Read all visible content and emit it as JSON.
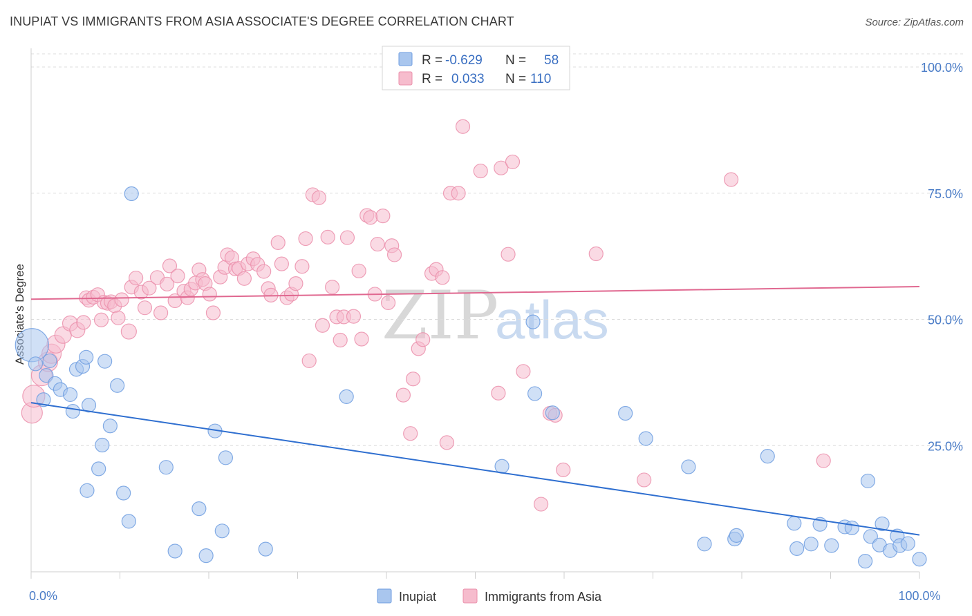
{
  "title": "INUPIAT VS IMMIGRANTS FROM ASIA ASSOCIATE'S DEGREE CORRELATION CHART",
  "source": "Source: ZipAtlas.com",
  "watermark": {
    "part1": "ZIP",
    "part2": "atlas"
  },
  "colors": {
    "inupiat_fill": "#a9c6ee",
    "inupiat_stroke": "#6f9ee0",
    "inupiat_line": "#2f6fd0",
    "asia_fill": "#f6bccd",
    "asia_stroke": "#eb8fab",
    "asia_line": "#e06890",
    "tick_label": "#4a7cc7"
  },
  "legend": {
    "rows": [
      {
        "r_label": "R =",
        "r_value": "-0.629",
        "n_label": "N =",
        "n_value": "58"
      },
      {
        "r_label": "R =",
        "r_value": "0.033",
        "n_label": "N =",
        "n_value": "110"
      }
    ]
  },
  "chart_data": {
    "type": "scatter",
    "title": "INUPIAT VS IMMIGRANTS FROM ASIA ASSOCIATE'S DEGREE CORRELATION CHART",
    "xlabel": "",
    "ylabel": "Associate's Degree",
    "xlim": [
      0,
      100
    ],
    "ylim": [
      0,
      100
    ],
    "x_tick_labels": [
      "0.0%",
      "100.0%"
    ],
    "y_ticks": [
      25,
      50,
      75,
      100
    ],
    "y_tick_labels": [
      "25.0%",
      "50.0%",
      "75.0%",
      "100.0%"
    ],
    "grid": "horizontal dashed",
    "legend_position": "top-center",
    "series": [
      {
        "name": "Inupiat",
        "trend": {
          "x": [
            0,
            100
          ],
          "y": [
            33.5,
            7.3
          ]
        },
        "points": [
          [
            0.1,
            44.9,
            24
          ],
          [
            0.5,
            41.2,
            10
          ],
          [
            1.4,
            34.1,
            10
          ],
          [
            1.7,
            38.9,
            10
          ],
          [
            2.1,
            41.8,
            10
          ],
          [
            2.7,
            37.3,
            10
          ],
          [
            3.3,
            36.1,
            10
          ],
          [
            4.4,
            35.1,
            10
          ],
          [
            4.7,
            31.8,
            10
          ],
          [
            5.1,
            40.1,
            10
          ],
          [
            5.8,
            40.7,
            10
          ],
          [
            6.2,
            42.5,
            10
          ],
          [
            6.5,
            33.0,
            10
          ],
          [
            7.6,
            20.4,
            10
          ],
          [
            8.0,
            25.1,
            10
          ],
          [
            8.3,
            41.7,
            10
          ],
          [
            8.9,
            28.9,
            10
          ],
          [
            9.7,
            36.9,
            10
          ],
          [
            10.4,
            15.6,
            10
          ],
          [
            11.0,
            10.0,
            10
          ],
          [
            11.3,
            74.9,
            10
          ],
          [
            6.3,
            16.1,
            10
          ],
          [
            15.2,
            20.7,
            10
          ],
          [
            16.2,
            4.1,
            10
          ],
          [
            18.9,
            12.5,
            10
          ],
          [
            19.7,
            3.2,
            10
          ],
          [
            20.7,
            27.9,
            10
          ],
          [
            21.5,
            8.1,
            10
          ],
          [
            21.9,
            22.6,
            10
          ],
          [
            26.4,
            4.5,
            10
          ],
          [
            35.5,
            34.7,
            10
          ],
          [
            53.0,
            20.9,
            10
          ],
          [
            56.5,
            49.5,
            10
          ],
          [
            56.7,
            35.3,
            10
          ],
          [
            58.7,
            31.5,
            10
          ],
          [
            66.9,
            31.4,
            10
          ],
          [
            69.2,
            26.4,
            10
          ],
          [
            74.0,
            20.8,
            10
          ],
          [
            75.8,
            5.5,
            10
          ],
          [
            79.2,
            6.5,
            10
          ],
          [
            79.4,
            7.2,
            10
          ],
          [
            82.9,
            22.9,
            10
          ],
          [
            85.9,
            9.6,
            10
          ],
          [
            86.2,
            4.6,
            10
          ],
          [
            87.8,
            5.5,
            10
          ],
          [
            88.8,
            9.4,
            10
          ],
          [
            90.1,
            5.2,
            10
          ],
          [
            91.6,
            8.9,
            10
          ],
          [
            92.4,
            8.7,
            10
          ],
          [
            93.9,
            2.1,
            10
          ],
          [
            94.2,
            18.0,
            10
          ],
          [
            94.5,
            7.0,
            10
          ],
          [
            95.5,
            5.3,
            10
          ],
          [
            95.8,
            9.5,
            10
          ],
          [
            96.7,
            4.2,
            10
          ],
          [
            97.5,
            7.1,
            10
          ],
          [
            97.8,
            5.2,
            10
          ],
          [
            98.7,
            5.6,
            10
          ],
          [
            100.0,
            2.5,
            10
          ]
        ]
      },
      {
        "name": "Immigrants from Asia",
        "trend": {
          "x": [
            0,
            100
          ],
          "y": [
            54.0,
            56.5
          ]
        },
        "points": [
          [
            0.1,
            31.5,
            15
          ],
          [
            0.3,
            34.8,
            16
          ],
          [
            1.2,
            38.9,
            15
          ],
          [
            1.9,
            41.6,
            14
          ],
          [
            2.3,
            43.2,
            14
          ],
          [
            2.8,
            45.1,
            13
          ],
          [
            3.6,
            46.9,
            12
          ],
          [
            4.4,
            49.2,
            11
          ],
          [
            5.2,
            47.9,
            11
          ],
          [
            5.9,
            49.4,
            10
          ],
          [
            6.2,
            54.3,
            10
          ],
          [
            6.5,
            53.8,
            10
          ],
          [
            7.0,
            54.4,
            10
          ],
          [
            7.5,
            54.9,
            10
          ],
          [
            7.9,
            49.9,
            10
          ],
          [
            8.2,
            53.4,
            10
          ],
          [
            8.6,
            53.2,
            10
          ],
          [
            9.0,
            53.5,
            10
          ],
          [
            9.4,
            52.7,
            10
          ],
          [
            9.8,
            50.3,
            10
          ],
          [
            10.2,
            53.9,
            10
          ],
          [
            11.0,
            47.6,
            11
          ],
          [
            11.3,
            56.4,
            10
          ],
          [
            11.8,
            58.2,
            10
          ],
          [
            12.4,
            55.4,
            10
          ],
          [
            12.8,
            52.3,
            10
          ],
          [
            13.3,
            56.2,
            10
          ],
          [
            14.2,
            58.3,
            10
          ],
          [
            14.6,
            51.3,
            10
          ],
          [
            15.3,
            57.0,
            10
          ],
          [
            15.6,
            60.6,
            10
          ],
          [
            16.2,
            53.7,
            10
          ],
          [
            16.5,
            58.6,
            10
          ],
          [
            17.2,
            55.6,
            10
          ],
          [
            17.6,
            54.3,
            10
          ],
          [
            18.0,
            56.0,
            10
          ],
          [
            18.5,
            57.2,
            10
          ],
          [
            18.9,
            59.8,
            10
          ],
          [
            19.3,
            57.9,
            10
          ],
          [
            19.6,
            57.1,
            10
          ],
          [
            20.1,
            55.0,
            10
          ],
          [
            20.5,
            51.3,
            10
          ],
          [
            21.3,
            58.4,
            10
          ],
          [
            21.8,
            60.3,
            10
          ],
          [
            22.1,
            62.8,
            10
          ],
          [
            22.6,
            62.2,
            10
          ],
          [
            23.0,
            60.0,
            10
          ],
          [
            23.4,
            60.1,
            10
          ],
          [
            24.0,
            58.1,
            10
          ],
          [
            24.4,
            61.0,
            10
          ],
          [
            25.0,
            62.0,
            10
          ],
          [
            25.5,
            60.9,
            10
          ],
          [
            26.2,
            59.5,
            10
          ],
          [
            26.7,
            56.1,
            10
          ],
          [
            27.0,
            54.8,
            10
          ],
          [
            27.8,
            65.2,
            10
          ],
          [
            28.2,
            61.0,
            10
          ],
          [
            28.8,
            54.3,
            10
          ],
          [
            29.3,
            55.0,
            10
          ],
          [
            29.8,
            57.1,
            10
          ],
          [
            30.5,
            60.5,
            10
          ],
          [
            30.9,
            66.0,
            10
          ],
          [
            31.3,
            41.8,
            10
          ],
          [
            31.7,
            74.7,
            10
          ],
          [
            32.4,
            74.1,
            10
          ],
          [
            32.8,
            48.8,
            10
          ],
          [
            33.4,
            66.3,
            10
          ],
          [
            33.9,
            56.4,
            10
          ],
          [
            34.4,
            50.5,
            10
          ],
          [
            34.8,
            45.9,
            10
          ],
          [
            35.2,
            50.5,
            10
          ],
          [
            35.6,
            66.2,
            10
          ],
          [
            36.3,
            50.6,
            10
          ],
          [
            36.9,
            59.6,
            10
          ],
          [
            37.2,
            46.1,
            10
          ],
          [
            37.8,
            70.6,
            10
          ],
          [
            38.2,
            70.2,
            10
          ],
          [
            38.7,
            55.0,
            10
          ],
          [
            39.0,
            64.9,
            10
          ],
          [
            39.6,
            70.5,
            10
          ],
          [
            40.2,
            53.3,
            10
          ],
          [
            40.6,
            64.6,
            10
          ],
          [
            40.9,
            62.8,
            10
          ],
          [
            41.9,
            35.0,
            10
          ],
          [
            42.7,
            27.4,
            10
          ],
          [
            43.0,
            38.2,
            10
          ],
          [
            43.6,
            44.2,
            10
          ],
          [
            44.1,
            46.0,
            10
          ],
          [
            45.1,
            59.1,
            10
          ],
          [
            45.6,
            59.9,
            10
          ],
          [
            46.3,
            58.3,
            10
          ],
          [
            46.8,
            25.6,
            10
          ],
          [
            47.2,
            75.0,
            10
          ],
          [
            48.1,
            75.0,
            10
          ],
          [
            48.6,
            88.2,
            10
          ],
          [
            50.6,
            79.4,
            10
          ],
          [
            52.6,
            35.4,
            10
          ],
          [
            52.9,
            80.0,
            10
          ],
          [
            53.7,
            62.9,
            10
          ],
          [
            54.2,
            81.2,
            10
          ],
          [
            55.4,
            39.7,
            10
          ],
          [
            57.4,
            13.4,
            10
          ],
          [
            58.4,
            31.4,
            10
          ],
          [
            59.0,
            31.0,
            10
          ],
          [
            59.9,
            20.2,
            10
          ],
          [
            63.6,
            63.0,
            10
          ],
          [
            69.0,
            18.2,
            10
          ],
          [
            78.8,
            77.7,
            10
          ],
          [
            89.2,
            22.0,
            10
          ]
        ]
      }
    ]
  }
}
